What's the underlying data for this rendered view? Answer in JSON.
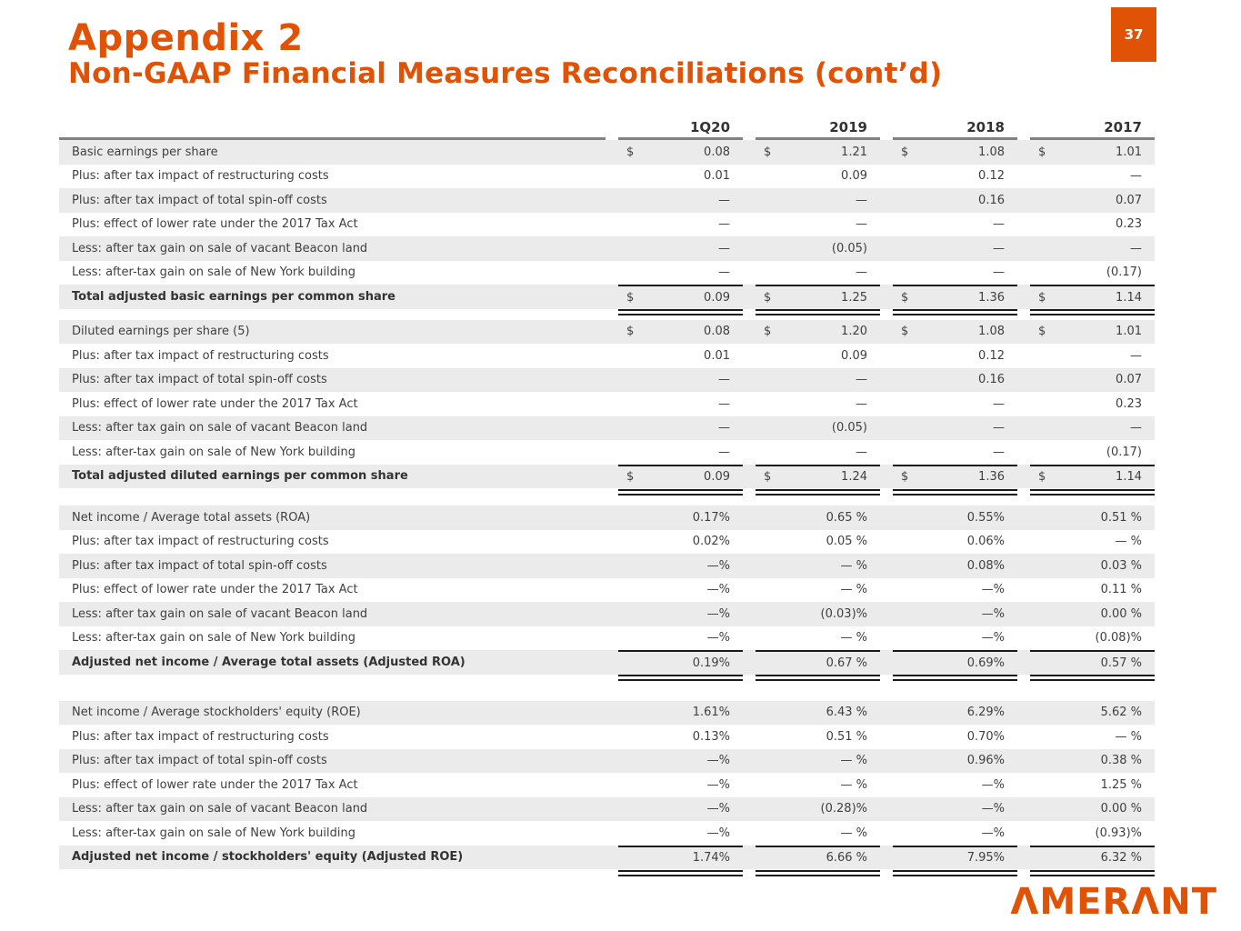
{
  "page": {
    "title": "Appendix 2",
    "subtitle": "Non-GAAP Financial Measures Reconciliations (cont’d)",
    "page_number": "37",
    "logo_text": "ΛMERΛNT",
    "accent_color": "#E05206"
  },
  "table": {
    "currency_symbol": "$",
    "columns": [
      "1Q20",
      "2019",
      "2018",
      "2017"
    ],
    "sections": [
      {
        "name": "basic-eps",
        "rows": [
          {
            "label": "Basic earnings per share",
            "dollar": true,
            "values": [
              "0.08",
              "1.21",
              "1.08",
              "1.01"
            ]
          },
          {
            "label": "Plus: after tax impact of restructuring costs",
            "values": [
              "0.01",
              "0.09",
              "0.12",
              "—"
            ]
          },
          {
            "label": "Plus: after tax impact of total spin-off costs",
            "values": [
              "—",
              "—",
              "0.16",
              "0.07"
            ]
          },
          {
            "label": "Plus: effect of lower rate under the 2017 Tax Act",
            "values": [
              "—",
              "—",
              "—",
              "0.23"
            ]
          },
          {
            "label": "Less: after tax gain on sale of vacant Beacon land",
            "values": [
              "—",
              "(0.05)",
              "—",
              "—"
            ]
          },
          {
            "label": "Less: after-tax gain on sale of New York building",
            "values": [
              "—",
              "—",
              "—",
              "(0.17)"
            ]
          },
          {
            "label": "Total adjusted basic earnings per common share",
            "dollar": true,
            "total": true,
            "values": [
              "0.09",
              "1.25",
              "1.36",
              "1.14"
            ]
          }
        ]
      },
      {
        "name": "diluted-eps",
        "rows": [
          {
            "label": "Diluted earnings per share (5)",
            "dollar": true,
            "values": [
              "0.08",
              "1.20",
              "1.08",
              "1.01"
            ]
          },
          {
            "label": "Plus: after tax impact of restructuring costs",
            "values": [
              "0.01",
              "0.09",
              "0.12",
              "—"
            ]
          },
          {
            "label": "Plus: after tax impact of total spin-off costs",
            "values": [
              "—",
              "—",
              "0.16",
              "0.07"
            ]
          },
          {
            "label": "Plus: effect of lower rate under the 2017 Tax Act",
            "values": [
              "—",
              "—",
              "—",
              "0.23"
            ]
          },
          {
            "label": "Less: after tax gain on sale of vacant Beacon land",
            "values": [
              "—",
              "(0.05)",
              "—",
              "—"
            ]
          },
          {
            "label": "Less: after-tax gain on sale of New York building",
            "values": [
              "—",
              "—",
              "—",
              "(0.17)"
            ]
          },
          {
            "label": "Total adjusted diluted earnings per common share",
            "dollar": true,
            "total": true,
            "values": [
              "0.09",
              "1.24",
              "1.36",
              "1.14"
            ]
          }
        ]
      },
      {
        "name": "roa",
        "rows": [
          {
            "label": "Net income / Average total assets (ROA)",
            "values": [
              "0.17%",
              "0.65 %",
              "0.55%",
              "0.51 %"
            ]
          },
          {
            "label": "Plus: after tax impact of restructuring costs",
            "values": [
              "0.02%",
              "0.05 %",
              "0.06%",
              "— %"
            ]
          },
          {
            "label": "Plus: after tax impact of total spin-off costs",
            "values": [
              "—%",
              "— %",
              "0.08%",
              "0.03 %"
            ]
          },
          {
            "label": "Plus: effect of lower rate under the 2017 Tax Act",
            "values": [
              "—%",
              "— %",
              "—%",
              "0.11 %"
            ]
          },
          {
            "label": "Less: after tax gain on sale of vacant Beacon land",
            "values": [
              "—%",
              "(0.03)%",
              "—%",
              "0.00 %"
            ]
          },
          {
            "label": "Less: after-tax gain on sale of New York building",
            "values": [
              "—%",
              "— %",
              "—%",
              "(0.08)%"
            ]
          },
          {
            "label": "Adjusted net income / Average total assets (Adjusted ROA)",
            "total": true,
            "values": [
              "0.19%",
              "0.67 %",
              "0.69%",
              "0.57 %"
            ]
          }
        ]
      },
      {
        "name": "roe",
        "rows": [
          {
            "label": "Net income / Average stockholders' equity (ROE)",
            "values": [
              "1.61%",
              "6.43 %",
              "6.29%",
              "5.62 %"
            ]
          },
          {
            "label": "Plus: after tax impact of restructuring costs",
            "values": [
              "0.13%",
              "0.51 %",
              "0.70%",
              "— %"
            ]
          },
          {
            "label": "Plus: after tax impact of total spin-off costs",
            "values": [
              "—%",
              "— %",
              "0.96%",
              "0.38 %"
            ]
          },
          {
            "label": "Plus: effect of lower rate under the 2017 Tax Act",
            "values": [
              "—%",
              "— %",
              "—%",
              "1.25 %"
            ]
          },
          {
            "label": "Less: after tax gain on sale of vacant Beacon land",
            "values": [
              "—%",
              "(0.28)%",
              "—%",
              "0.00 %"
            ]
          },
          {
            "label": "Less: after-tax gain on sale of New York building",
            "values": [
              "—%",
              "— %",
              "—%",
              "(0.93)%"
            ]
          },
          {
            "label": "Adjusted net income / stockholders' equity (Adjusted ROE)",
            "total": true,
            "values": [
              "1.74%",
              "6.66 %",
              "7.95%",
              "6.32 %"
            ]
          }
        ]
      }
    ]
  }
}
